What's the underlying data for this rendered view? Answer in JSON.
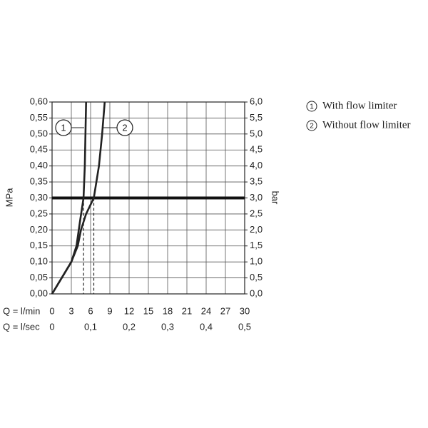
{
  "chart_data": {
    "type": "line",
    "ylabel": "MPa",
    "y2label": "bar",
    "xlabel": "Q = l/min",
    "x2label": "Q = l/sec",
    "xlim": [
      0,
      30
    ],
    "xticks": [
      0,
      3,
      6,
      9,
      12,
      15,
      18,
      21,
      24,
      27,
      30
    ],
    "x2lim": [
      0,
      0.5
    ],
    "x2ticks": [
      0,
      {
        "value": 0.1,
        "label": "0,1"
      },
      {
        "value": 0.2,
        "label": "0,2"
      },
      {
        "value": 0.3,
        "label": "0,3"
      },
      {
        "value": 0.4,
        "label": "0,4"
      },
      {
        "value": 0.5,
        "label": "0,5"
      }
    ],
    "ylim": [
      0,
      0.6
    ],
    "yticks": [
      {
        "value": 0,
        "label": "0,00"
      },
      {
        "value": 0.05,
        "label": "0,05"
      },
      {
        "value": 0.1,
        "label": "0,10"
      },
      {
        "value": 0.15,
        "label": "0,15"
      },
      {
        "value": 0.2,
        "label": "0,20"
      },
      {
        "value": 0.25,
        "label": "0,25"
      },
      {
        "value": 0.3,
        "label": "0,30"
      },
      {
        "value": 0.35,
        "label": "0,35"
      },
      {
        "value": 0.4,
        "label": "0,40"
      },
      {
        "value": 0.45,
        "label": "0,45"
      },
      {
        "value": 0.5,
        "label": "0,50"
      },
      {
        "value": 0.55,
        "label": "0,55"
      },
      {
        "value": 0.6,
        "label": "0,60"
      }
    ],
    "y2lim": [
      0,
      6
    ],
    "y2ticks": [
      {
        "value": 0,
        "label": "0,0"
      },
      {
        "value": 0.5,
        "label": "0,5"
      },
      {
        "value": 1,
        "label": "1,0"
      },
      {
        "value": 1.5,
        "label": "1,5"
      },
      {
        "value": 2,
        "label": "2,0"
      },
      {
        "value": 2.5,
        "label": "2,5"
      },
      {
        "value": 3,
        "label": "3,0"
      },
      {
        "value": 3.5,
        "label": "3,5"
      },
      {
        "value": 4,
        "label": "4,0"
      },
      {
        "value": 4.5,
        "label": "4,5"
      },
      {
        "value": 5,
        "label": "5,0"
      },
      {
        "value": 5.5,
        "label": "5,5"
      },
      {
        "value": 6,
        "label": "6,0"
      }
    ],
    "grid": true,
    "reference_line": 0.3,
    "series": [
      {
        "label": "1",
        "name": "With flow limiter",
        "color": "#222222",
        "x": [
          0,
          3,
          3.8,
          4.3,
          4.9,
          5.1,
          5.3
        ],
        "values": [
          0,
          0.1,
          0.15,
          0.22,
          0.3,
          0.4,
          0.6
        ]
      },
      {
        "label": "2",
        "name": "Without flow limiter",
        "color": "#222222",
        "x": [
          0,
          3,
          4,
          4.5,
          5.3,
          6.5,
          7.3,
          7.8,
          8.2
        ],
        "values": [
          0,
          0.1,
          0.15,
          0.2,
          0.25,
          0.3,
          0.4,
          0.5,
          0.6
        ]
      }
    ]
  }
}
